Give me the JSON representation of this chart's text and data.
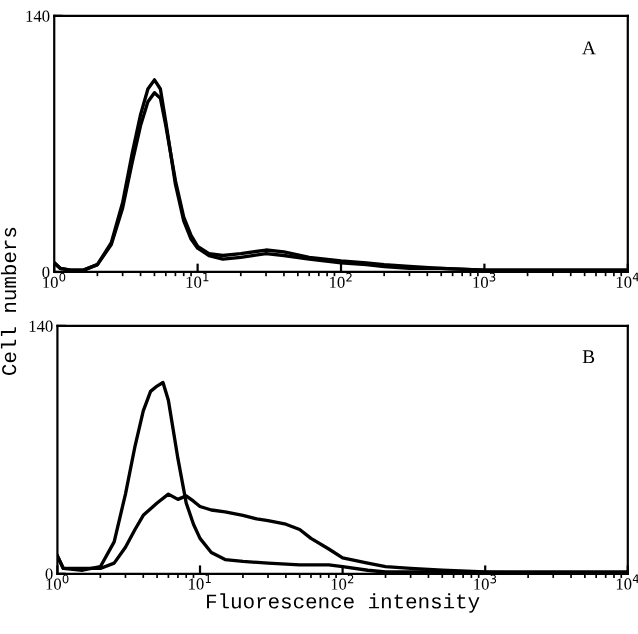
{
  "chart_data": [
    {
      "type": "line",
      "annotations": [
        {
          "text": "A"
        }
      ],
      "tick_labels": "xy",
      "log": "x",
      "xlim": [
        1,
        10000
      ],
      "ylim": [
        0,
        140
      ],
      "xticks": [
        {
          "value": 1,
          "label": "10$^{0}$"
        },
        {
          "value": 10,
          "label": "10$^{1}$"
        },
        {
          "value": 100,
          "label": "10$^{2}$"
        },
        {
          "value": 1000,
          "label": "10$^{3}$"
        },
        {
          "value": 10000,
          "label": "10$^{4}$"
        }
      ],
      "yticks": [
        0,
        140
      ],
      "grid": false,
      "legend": false,
      "series": [
        {
          "color": "#000000",
          "x": [
            1,
            1.1,
            1.3,
            1.6,
            2,
            2.5,
            3,
            3.5,
            4,
            4.5,
            5,
            5.5,
            6,
            7,
            8,
            9,
            10,
            12,
            15,
            20,
            30,
            40,
            60,
            100,
            150,
            200,
            300,
            500,
            1000,
            2000,
            5000,
            10000
          ],
          "values": [
            5,
            2,
            1,
            1,
            4,
            15,
            35,
            60,
            80,
            93,
            98,
            95,
            80,
            50,
            30,
            20,
            14,
            10,
            9,
            10,
            12,
            11,
            8,
            6,
            5,
            4,
            3,
            2,
            1,
            1,
            1,
            1
          ]
        },
        {
          "color": "#000000",
          "x": [
            1,
            1.1,
            1.3,
            1.6,
            2,
            2.5,
            3,
            3.5,
            4,
            4.5,
            5,
            5.5,
            6,
            7,
            8,
            9,
            10,
            12,
            15,
            20,
            30,
            40,
            60,
            100,
            150,
            200,
            300,
            500,
            1000,
            2000,
            5000,
            10000
          ],
          "values": [
            5,
            2,
            1,
            1,
            4,
            16,
            38,
            65,
            86,
            100,
            105,
            100,
            82,
            48,
            28,
            18,
            13,
            9,
            7,
            8,
            10,
            9,
            7,
            5,
            4,
            3,
            2,
            2,
            1,
            1,
            1,
            1
          ]
        }
      ]
    },
    {
      "type": "line",
      "annotations": [
        {
          "text": "B"
        }
      ],
      "xlabel": "Fluorescence intensity",
      "ylabel": "Cell numbers",
      "log": "x",
      "xlim": [
        1,
        10000
      ],
      "ylim": [
        0,
        140
      ],
      "xticks": [
        {
          "value": 1,
          "label": "10$^{0}$"
        },
        {
          "value": 10,
          "label": "10$^{1}$"
        },
        {
          "value": 100,
          "label": "10$^{2}$"
        },
        {
          "value": 1000,
          "label": "10$^{3}$"
        },
        {
          "value": 10000,
          "label": "10$^{4}$"
        }
      ],
      "yticks": [
        0,
        140
      ],
      "grid": false,
      "legend": false,
      "series": [
        {
          "color": "#000000",
          "x": [
            1,
            1.1,
            1.5,
            2,
            2.5,
            3,
            3.5,
            4,
            4.5,
            5,
            5.5,
            6,
            7,
            8,
            9,
            10,
            12,
            15,
            20,
            30,
            50,
            80,
            100,
            150,
            200,
            500,
            10000
          ],
          "values": [
            10,
            3,
            2,
            4,
            18,
            45,
            72,
            92,
            103,
            106,
            108,
            98,
            65,
            40,
            28,
            20,
            12,
            8,
            7,
            6,
            5,
            5,
            4,
            2,
            1,
            1,
            0
          ]
        },
        {
          "color": "#000000",
          "x": [
            1,
            1.1,
            1.5,
            2,
            2.5,
            3,
            3.5,
            4,
            5,
            6,
            7,
            8,
            9,
            10,
            12,
            15,
            20,
            25,
            30,
            40,
            50,
            60,
            80,
            100,
            150,
            200,
            300,
            500,
            1000,
            3000,
            10000
          ],
          "values": [
            10,
            3,
            3,
            3,
            6,
            15,
            25,
            33,
            40,
            45,
            42,
            44,
            41,
            38,
            36,
            35,
            33,
            31,
            30,
            28,
            25,
            20,
            14,
            9,
            6,
            4,
            3,
            2,
            1,
            1,
            1
          ]
        }
      ]
    }
  ]
}
